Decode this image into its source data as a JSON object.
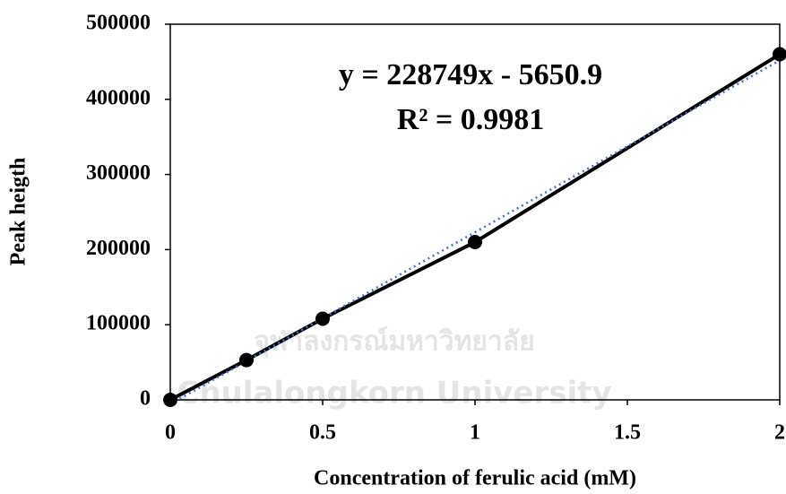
{
  "chart_data": {
    "type": "line",
    "x_label": "Concentration of ferulic acid (mM)",
    "y_label": "Peak heigth",
    "x": [
      0,
      0.25,
      0.5,
      1,
      2
    ],
    "series": [
      {
        "name": "Peak heigth",
        "color": "#000000",
        "values": [
          0,
          53000,
          108000,
          210000,
          460000
        ]
      }
    ],
    "trendline": {
      "slope": 228749,
      "intercept": -5650.9,
      "color": "#4472c4",
      "equation": "y = 228749x - 5650.9",
      "r2": "R² = 0.9981"
    },
    "xlim": [
      0,
      2
    ],
    "xticks": [
      0,
      0.5,
      1,
      1.5,
      2
    ],
    "ylim": [
      0,
      500000
    ],
    "yticks": [
      0,
      100000,
      200000,
      300000,
      400000,
      500000
    ],
    "grid": false,
    "watermark": [
      "จุฬาลงกรณ์มหาวิทยาลัย",
      "Chulalongkorn University"
    ]
  }
}
